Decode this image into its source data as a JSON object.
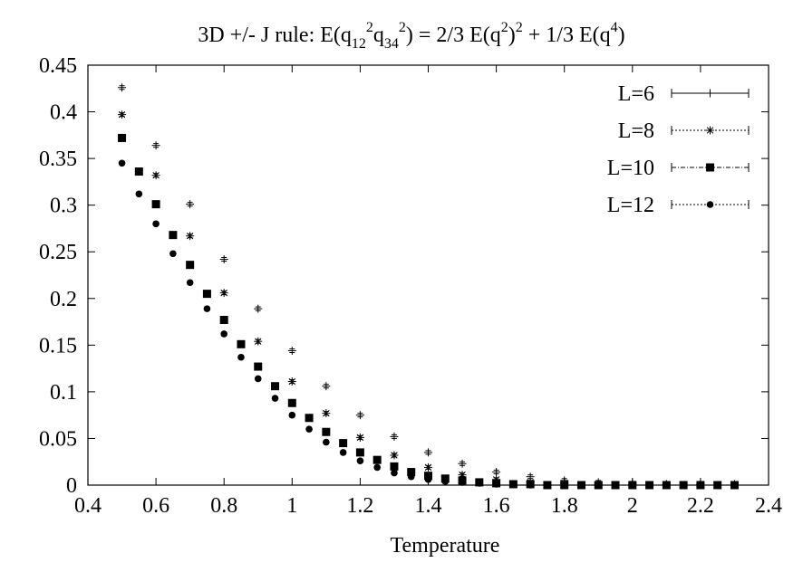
{
  "chart_data": {
    "type": "scatter",
    "title": {
      "p1": "3D +/- J rule: E(q",
      "s1": "12",
      "p2": "q",
      "s2": "34",
      "p3": ") = 2/3 E(q",
      "p4": ")",
      "p5": " + 1/3 E(q",
      "s4": "4",
      "p6": ")",
      "two": "2"
    },
    "xlabel": "Temperature",
    "ylabel": "",
    "xlim": [
      0.4,
      2.4
    ],
    "ylim": [
      0,
      0.45
    ],
    "xticks": [
      "0.4",
      "0.6",
      "0.8",
      "1",
      "1.2",
      "1.4",
      "1.6",
      "1.8",
      "2",
      "2.2",
      "2.4"
    ],
    "yticks": [
      "0",
      "0.05",
      "0.1",
      "0.15",
      "0.2",
      "0.25",
      "0.3",
      "0.35",
      "0.4",
      "0.45"
    ],
    "grid": false,
    "legend_position": "top-right",
    "series": [
      {
        "name": "L=6",
        "marker": "plus",
        "x": [
          0.5,
          0.6,
          0.7,
          0.8,
          0.9,
          1.0,
          1.1,
          1.2,
          1.3,
          1.4,
          1.5,
          1.6,
          1.7,
          1.8,
          1.9,
          2.0,
          2.1,
          2.2,
          2.3
        ],
        "y": [
          0.426,
          0.364,
          0.301,
          0.242,
          0.189,
          0.144,
          0.106,
          0.075,
          0.052,
          0.035,
          0.023,
          0.014,
          0.009,
          0.005,
          0.003,
          0.002,
          0.001,
          0.001,
          0.001
        ]
      },
      {
        "name": "L=8",
        "marker": "star",
        "x": [
          0.5,
          0.6,
          0.7,
          0.8,
          0.9,
          1.0,
          1.1,
          1.2,
          1.3,
          1.4,
          1.5,
          1.6,
          1.7,
          1.8,
          1.9,
          2.0,
          2.1,
          2.2,
          2.3
        ],
        "y": [
          0.397,
          0.332,
          0.267,
          0.206,
          0.154,
          0.111,
          0.077,
          0.051,
          0.032,
          0.019,
          0.011,
          0.006,
          0.003,
          0.002,
          0.001,
          0.001,
          0.001,
          0.001,
          0.001
        ]
      },
      {
        "name": "L=10",
        "marker": "square",
        "x": [
          0.5,
          0.55,
          0.6,
          0.65,
          0.7,
          0.75,
          0.8,
          0.85,
          0.9,
          0.95,
          1.0,
          1.05,
          1.1,
          1.15,
          1.2,
          1.25,
          1.3,
          1.35,
          1.4,
          1.45,
          1.5,
          1.55,
          1.6,
          1.65,
          1.7,
          1.75,
          1.8,
          1.85,
          1.9,
          1.95,
          2.0,
          2.05,
          2.1,
          2.15,
          2.2,
          2.25,
          2.3
        ],
        "y": [
          0.372,
          0.336,
          0.301,
          0.268,
          0.236,
          0.205,
          0.177,
          0.151,
          0.127,
          0.106,
          0.088,
          0.072,
          0.057,
          0.045,
          0.035,
          0.027,
          0.02,
          0.014,
          0.01,
          0.007,
          0.005,
          0.003,
          0.002,
          0.001,
          0.001,
          0.0,
          0.0,
          0.0,
          0.0,
          0.0,
          0.0,
          0.0,
          0.0,
          0.0,
          0.0,
          0.0,
          0.0
        ]
      },
      {
        "name": "L=12",
        "marker": "circle",
        "x": [
          0.5,
          0.55,
          0.6,
          0.65,
          0.7,
          0.75,
          0.8,
          0.85,
          0.9,
          0.95,
          1.0,
          1.05,
          1.1,
          1.15,
          1.2,
          1.25,
          1.3,
          1.35,
          1.4,
          1.45,
          1.5,
          1.55,
          1.6,
          1.65,
          1.7,
          1.75,
          1.8,
          1.85,
          1.9,
          1.95,
          2.0,
          2.05,
          2.1,
          2.15,
          2.2,
          2.25,
          2.3
        ],
        "y": [
          0.345,
          0.312,
          0.28,
          0.248,
          0.217,
          0.189,
          0.162,
          0.137,
          0.114,
          0.093,
          0.075,
          0.06,
          0.046,
          0.035,
          0.026,
          0.019,
          0.013,
          0.009,
          0.006,
          0.004,
          0.003,
          0.002,
          0.001,
          0.001,
          0.0,
          0.0,
          0.0,
          0.0,
          0.0,
          0.0,
          0.0,
          0.0,
          0.0,
          0.0,
          0.0,
          0.0,
          0.0
        ]
      }
    ]
  }
}
